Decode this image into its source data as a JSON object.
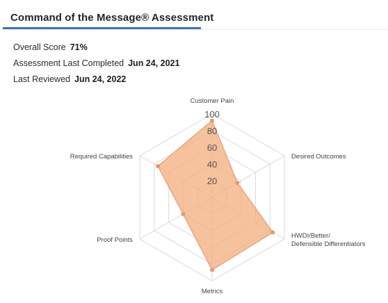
{
  "header": {
    "title": "Command of the Message® Assessment"
  },
  "summary": {
    "overall_score_label": "Overall Score",
    "overall_score_value": "71%",
    "last_completed_label": "Assessment Last Completed",
    "last_completed_value": "Jun 24, 2021",
    "last_reviewed_label": "Last Reviewed",
    "last_reviewed_value": "Jun 24, 2022"
  },
  "chart_data": {
    "type": "radar",
    "axes": [
      {
        "label": [
          "Customer Pain"
        ],
        "value": 92
      },
      {
        "label": [
          "Desired Outcomes"
        ],
        "value": 35
      },
      {
        "label": [
          "HWDI/Better/",
          "Defensible Differentiators"
        ],
        "value": 84
      },
      {
        "label": [
          "Metrics"
        ],
        "value": 87
      },
      {
        "label": [
          "Proof Points"
        ],
        "value": 40
      },
      {
        "label": [
          "Required Capabilities"
        ],
        "value": 75
      }
    ],
    "scale": {
      "min": 0,
      "max": 100,
      "ticks": [
        20,
        40,
        60,
        80,
        100
      ]
    },
    "series_color": "#f4b183",
    "series_stroke": "#e8a57a",
    "point_color": "#e39a6c",
    "grid_color": "#d9d9d9"
  }
}
